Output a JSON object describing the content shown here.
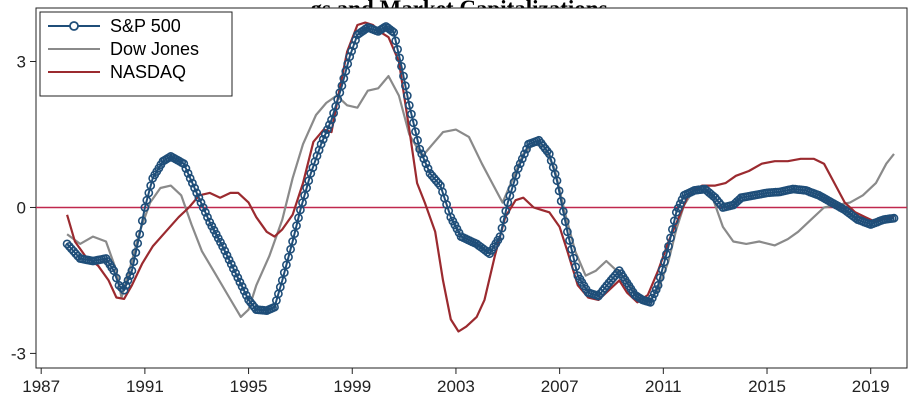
{
  "chart_data": {
    "type": "line",
    "title": "gs and Market Capitalizations",
    "xlabel": "",
    "ylabel": "",
    "xlim": [
      1986.8,
      2020.4
    ],
    "ylim": [
      -3.3,
      4.1
    ],
    "x_ticks": [
      1987,
      1991,
      1995,
      1999,
      2003,
      2007,
      2011,
      2015,
      2019
    ],
    "y_ticks": [
      -3,
      0,
      3
    ],
    "reference_line": {
      "y": 0,
      "color": "#c0284e"
    },
    "grid": false,
    "legend": {
      "position": "top-left",
      "items": [
        "S&P 500",
        "Dow Jones",
        "NASDAQ"
      ]
    },
    "series": [
      {
        "name": "S&P 500",
        "color": "#1f4e79",
        "marker": "hollow-circle",
        "points": [
          [
            1988.0,
            -0.75
          ],
          [
            1988.5,
            -1.05
          ],
          [
            1989.0,
            -1.1
          ],
          [
            1989.5,
            -1.05
          ],
          [
            1989.8,
            -1.3
          ],
          [
            1990.0,
            -1.6
          ],
          [
            1990.2,
            -1.7
          ],
          [
            1990.5,
            -1.3
          ],
          [
            1990.8,
            -0.55
          ],
          [
            1991.0,
            0.0
          ],
          [
            1991.3,
            0.6
          ],
          [
            1991.7,
            0.95
          ],
          [
            1992.0,
            1.05
          ],
          [
            1992.5,
            0.9
          ],
          [
            1993.0,
            0.3
          ],
          [
            1993.5,
            -0.3
          ],
          [
            1994.0,
            -0.8
          ],
          [
            1994.5,
            -1.35
          ],
          [
            1995.0,
            -1.9
          ],
          [
            1995.3,
            -2.1
          ],
          [
            1995.7,
            -2.12
          ],
          [
            1996.0,
            -2.05
          ],
          [
            1996.3,
            -1.5
          ],
          [
            1996.7,
            -0.7
          ],
          [
            1997.0,
            -0.05
          ],
          [
            1997.4,
            0.7
          ],
          [
            1997.8,
            1.3
          ],
          [
            1998.2,
            1.8
          ],
          [
            1998.6,
            2.5
          ],
          [
            1998.9,
            3.1
          ],
          [
            1999.2,
            3.55
          ],
          [
            1999.6,
            3.7
          ],
          [
            2000.0,
            3.62
          ],
          [
            2000.3,
            3.72
          ],
          [
            2000.6,
            3.6
          ],
          [
            2000.9,
            2.9
          ],
          [
            2001.2,
            2.1
          ],
          [
            2001.6,
            1.2
          ],
          [
            2002.0,
            0.7
          ],
          [
            2002.4,
            0.45
          ],
          [
            2002.8,
            -0.2
          ],
          [
            2003.2,
            -0.6
          ],
          [
            2003.8,
            -0.75
          ],
          [
            2004.3,
            -0.95
          ],
          [
            2004.7,
            -0.6
          ],
          [
            2005.0,
            0.1
          ],
          [
            2005.4,
            0.8
          ],
          [
            2005.8,
            1.3
          ],
          [
            2006.2,
            1.38
          ],
          [
            2006.6,
            1.1
          ],
          [
            2006.9,
            0.55
          ],
          [
            2007.3,
            -0.5
          ],
          [
            2007.7,
            -1.4
          ],
          [
            2008.1,
            -1.75
          ],
          [
            2008.5,
            -1.82
          ],
          [
            2008.9,
            -1.55
          ],
          [
            2009.3,
            -1.3
          ],
          [
            2009.6,
            -1.55
          ],
          [
            2009.9,
            -1.8
          ],
          [
            2010.2,
            -1.9
          ],
          [
            2010.5,
            -1.95
          ],
          [
            2010.8,
            -1.6
          ],
          [
            2011.2,
            -0.8
          ],
          [
            2011.5,
            -0.1
          ],
          [
            2011.8,
            0.25
          ],
          [
            2012.2,
            0.35
          ],
          [
            2012.6,
            0.38
          ],
          [
            2013.0,
            0.2
          ],
          [
            2013.3,
            0.0
          ],
          [
            2013.7,
            0.05
          ],
          [
            2014.0,
            0.2
          ],
          [
            2014.5,
            0.25
          ],
          [
            2015.0,
            0.3
          ],
          [
            2015.5,
            0.32
          ],
          [
            2016.0,
            0.38
          ],
          [
            2016.5,
            0.35
          ],
          [
            2017.0,
            0.25
          ],
          [
            2017.5,
            0.1
          ],
          [
            2018.0,
            -0.05
          ],
          [
            2018.5,
            -0.25
          ],
          [
            2019.0,
            -0.35
          ],
          [
            2019.5,
            -0.25
          ],
          [
            2019.9,
            -0.22
          ]
        ]
      },
      {
        "name": "Dow Jones",
        "color": "#8a8a8a",
        "marker": "none",
        "points": [
          [
            1988.0,
            -0.55
          ],
          [
            1988.5,
            -0.75
          ],
          [
            1989.0,
            -0.6
          ],
          [
            1989.5,
            -0.7
          ],
          [
            1989.9,
            -1.3
          ],
          [
            1990.1,
            -1.85
          ],
          [
            1990.4,
            -1.3
          ],
          [
            1990.8,
            -0.5
          ],
          [
            1991.2,
            0.1
          ],
          [
            1991.6,
            0.4
          ],
          [
            1992.0,
            0.45
          ],
          [
            1992.4,
            0.25
          ],
          [
            1992.8,
            -0.35
          ],
          [
            1993.2,
            -0.9
          ],
          [
            1993.7,
            -1.35
          ],
          [
            1994.2,
            -1.8
          ],
          [
            1994.7,
            -2.25
          ],
          [
            1995.0,
            -2.1
          ],
          [
            1995.3,
            -1.6
          ],
          [
            1995.8,
            -1.0
          ],
          [
            1996.3,
            -0.25
          ],
          [
            1996.7,
            0.6
          ],
          [
            1997.1,
            1.3
          ],
          [
            1997.6,
            1.9
          ],
          [
            1998.0,
            2.15
          ],
          [
            1998.4,
            2.3
          ],
          [
            1998.8,
            2.1
          ],
          [
            1999.2,
            2.05
          ],
          [
            1999.6,
            2.4
          ],
          [
            2000.0,
            2.45
          ],
          [
            2000.4,
            2.7
          ],
          [
            2000.8,
            2.3
          ],
          [
            2001.2,
            1.5
          ],
          [
            2001.7,
            1.05
          ],
          [
            2002.1,
            1.3
          ],
          [
            2002.5,
            1.55
          ],
          [
            2003.0,
            1.6
          ],
          [
            2003.5,
            1.45
          ],
          [
            2004.0,
            0.9
          ],
          [
            2004.4,
            0.5
          ],
          [
            2004.8,
            0.1
          ],
          [
            2005.2,
            0.6
          ],
          [
            2005.6,
            1.1
          ],
          [
            2006.0,
            1.3
          ],
          [
            2006.4,
            1.25
          ],
          [
            2006.8,
            0.8
          ],
          [
            2007.2,
            -0.1
          ],
          [
            2007.6,
            -0.9
          ],
          [
            2008.0,
            -1.4
          ],
          [
            2008.4,
            -1.3
          ],
          [
            2008.8,
            -1.1
          ],
          [
            2009.2,
            -1.3
          ],
          [
            2009.6,
            -1.5
          ],
          [
            2010.0,
            -1.85
          ],
          [
            2010.4,
            -1.95
          ],
          [
            2010.8,
            -1.7
          ],
          [
            2011.2,
            -1.1
          ],
          [
            2011.5,
            -0.45
          ],
          [
            2011.8,
            0.05
          ],
          [
            2012.1,
            0.3
          ],
          [
            2012.5,
            0.45
          ],
          [
            2012.9,
            0.2
          ],
          [
            2013.3,
            -0.4
          ],
          [
            2013.7,
            -0.7
          ],
          [
            2014.2,
            -0.75
          ],
          [
            2014.7,
            -0.7
          ],
          [
            2015.3,
            -0.78
          ],
          [
            2015.8,
            -0.65
          ],
          [
            2016.2,
            -0.5
          ],
          [
            2016.7,
            -0.25
          ],
          [
            2017.2,
            0.0
          ],
          [
            2017.7,
            0.05
          ],
          [
            2018.2,
            0.1
          ],
          [
            2018.7,
            0.25
          ],
          [
            2019.2,
            0.5
          ],
          [
            2019.6,
            0.9
          ],
          [
            2019.9,
            1.1
          ]
        ]
      },
      {
        "name": "NASDAQ",
        "color": "#9b2a2f",
        "marker": "none",
        "points": [
          [
            1988.0,
            -0.15
          ],
          [
            1988.3,
            -0.7
          ],
          [
            1988.7,
            -1.0
          ],
          [
            1989.2,
            -1.2
          ],
          [
            1989.6,
            -1.5
          ],
          [
            1989.9,
            -1.85
          ],
          [
            1990.2,
            -1.88
          ],
          [
            1990.5,
            -1.6
          ],
          [
            1990.9,
            -1.15
          ],
          [
            1991.3,
            -0.8
          ],
          [
            1991.8,
            -0.5
          ],
          [
            1992.3,
            -0.2
          ],
          [
            1992.7,
            0.0
          ],
          [
            1993.1,
            0.25
          ],
          [
            1993.5,
            0.3
          ],
          [
            1993.9,
            0.2
          ],
          [
            1994.3,
            0.3
          ],
          [
            1994.6,
            0.3
          ],
          [
            1995.0,
            0.1
          ],
          [
            1995.3,
            -0.2
          ],
          [
            1995.7,
            -0.5
          ],
          [
            1996.0,
            -0.6
          ],
          [
            1996.3,
            -0.45
          ],
          [
            1996.7,
            -0.15
          ],
          [
            1997.1,
            0.5
          ],
          [
            1997.5,
            1.35
          ],
          [
            1997.9,
            1.6
          ],
          [
            1998.2,
            1.55
          ],
          [
            1998.5,
            2.4
          ],
          [
            1998.8,
            3.2
          ],
          [
            1999.2,
            3.75
          ],
          [
            1999.5,
            3.8
          ],
          [
            1999.8,
            3.75
          ],
          [
            2000.1,
            3.6
          ],
          [
            2000.4,
            3.5
          ],
          [
            2000.8,
            3.0
          ],
          [
            2001.2,
            1.6
          ],
          [
            2001.5,
            0.5
          ],
          [
            2001.8,
            0.1
          ],
          [
            2002.2,
            -0.5
          ],
          [
            2002.5,
            -1.5
          ],
          [
            2002.8,
            -2.3
          ],
          [
            2003.1,
            -2.55
          ],
          [
            2003.4,
            -2.45
          ],
          [
            2003.8,
            -2.25
          ],
          [
            2004.1,
            -1.9
          ],
          [
            2004.5,
            -1.0
          ],
          [
            2004.9,
            -0.2
          ],
          [
            2005.3,
            0.15
          ],
          [
            2005.6,
            0.2
          ],
          [
            2006.0,
            0.0
          ],
          [
            2006.3,
            -0.05
          ],
          [
            2006.6,
            -0.1
          ],
          [
            2007.0,
            -0.4
          ],
          [
            2007.3,
            -0.9
          ],
          [
            2007.7,
            -1.6
          ],
          [
            2008.1,
            -1.85
          ],
          [
            2008.5,
            -1.9
          ],
          [
            2008.9,
            -1.7
          ],
          [
            2009.3,
            -1.5
          ],
          [
            2009.6,
            -1.75
          ],
          [
            2010.0,
            -1.95
          ],
          [
            2010.4,
            -1.8
          ],
          [
            2010.8,
            -1.3
          ],
          [
            2011.2,
            -0.7
          ],
          [
            2011.6,
            -0.2
          ],
          [
            2012.0,
            0.3
          ],
          [
            2012.5,
            0.45
          ],
          [
            2013.0,
            0.45
          ],
          [
            2013.4,
            0.5
          ],
          [
            2013.8,
            0.65
          ],
          [
            2014.3,
            0.75
          ],
          [
            2014.8,
            0.9
          ],
          [
            2015.3,
            0.95
          ],
          [
            2015.8,
            0.95
          ],
          [
            2016.3,
            1.0
          ],
          [
            2016.8,
            1.0
          ],
          [
            2017.2,
            0.9
          ],
          [
            2017.6,
            0.5
          ],
          [
            2018.0,
            0.1
          ],
          [
            2018.4,
            -0.1
          ],
          [
            2018.8,
            -0.2
          ],
          [
            2019.2,
            -0.3
          ],
          [
            2019.6,
            -0.2
          ],
          [
            2019.9,
            -0.2
          ]
        ]
      }
    ]
  }
}
